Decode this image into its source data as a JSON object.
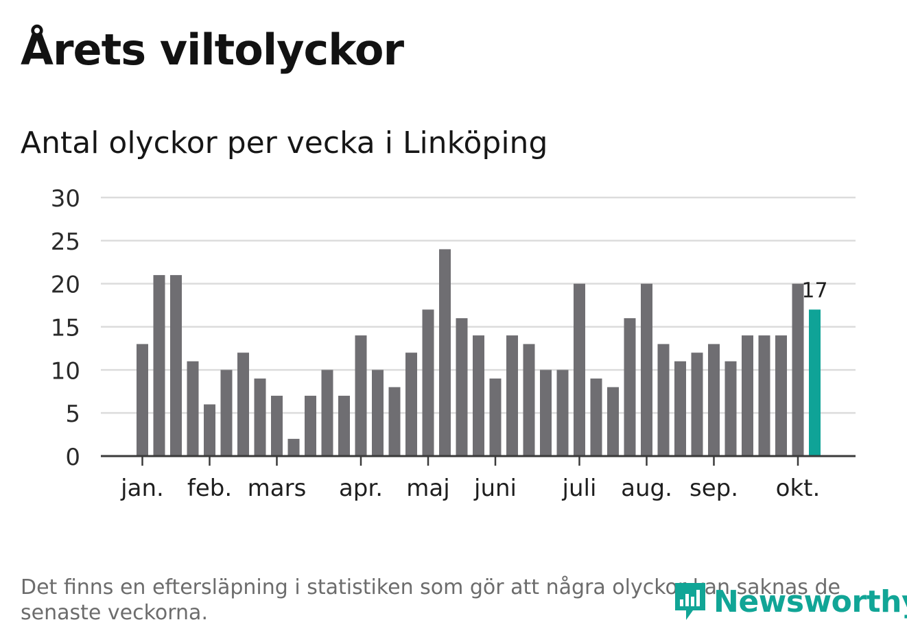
{
  "title": "Årets viltolyckor",
  "subtitle": "Antal olyckor per vecka i Linköping",
  "footnote": "Det finns en eftersläpning i statistiken som gör att några olyckor kan saknas de senaste veckorna.",
  "brand": {
    "name": "Newsworthy",
    "color": "#11a596",
    "icon": "bar-chart-speech-bubble-icon"
  },
  "chart_data": {
    "type": "bar",
    "values": [
      13,
      21,
      21,
      11,
      6,
      10,
      12,
      9,
      7,
      2,
      7,
      10,
      7,
      14,
      10,
      8,
      12,
      17,
      24,
      16,
      14,
      9,
      14,
      13,
      10,
      10,
      20,
      9,
      8,
      16,
      20,
      13,
      11,
      12,
      13,
      11,
      14,
      14,
      14,
      20,
      17
    ],
    "month_ticks": [
      {
        "label": "jan.",
        "week": 0
      },
      {
        "label": "feb.",
        "week": 4
      },
      {
        "label": "mars",
        "week": 8
      },
      {
        "label": "apr.",
        "week": 13
      },
      {
        "label": "maj",
        "week": 17
      },
      {
        "label": "juni",
        "week": 21
      },
      {
        "label": "juli",
        "week": 26
      },
      {
        "label": "aug.",
        "week": 30
      },
      {
        "label": "sep.",
        "week": 34
      },
      {
        "label": "okt.",
        "week": 39
      }
    ],
    "yticks": [
      0,
      5,
      10,
      15,
      20,
      25,
      30
    ],
    "ylim": [
      0,
      30
    ],
    "grid": true,
    "bar_color": "#6f6e72",
    "highlight_color": "#0fa397",
    "highlight_index": 40,
    "highlight_label": "17"
  }
}
